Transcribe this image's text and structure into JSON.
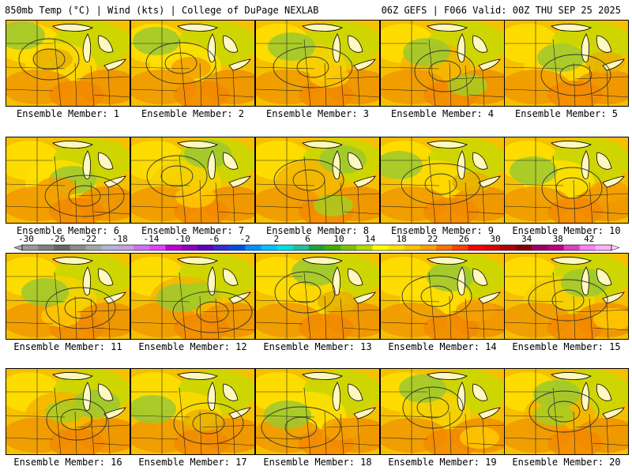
{
  "header": {
    "left": "850mb Temp (°C) | Wind (kts) | College of DuPage NEXLAB",
    "right": "06Z GEFS | F066 Valid: 00Z THU SEP 25 2025"
  },
  "members": [
    {
      "label": "Ensemble Member: 1"
    },
    {
      "label": "Ensemble Member: 2"
    },
    {
      "label": "Ensemble Member: 3"
    },
    {
      "label": "Ensemble Member: 4"
    },
    {
      "label": "Ensemble Member: 5"
    },
    {
      "label": "Ensemble Member: 6"
    },
    {
      "label": "Ensemble Member: 7"
    },
    {
      "label": "Ensemble Member: 8"
    },
    {
      "label": "Ensemble Member: 9"
    },
    {
      "label": "Ensemble Member: 10"
    },
    {
      "label": "Ensemble Member: 11"
    },
    {
      "label": "Ensemble Member: 12"
    },
    {
      "label": "Ensemble Member: 13"
    },
    {
      "label": "Ensemble Member: 14"
    },
    {
      "label": "Ensemble Member: 15"
    },
    {
      "label": "Ensemble Member: 16"
    },
    {
      "label": "Ensemble Member: 17"
    },
    {
      "label": "Ensemble Member: 18"
    },
    {
      "label": "Ensemble Member: 19"
    },
    {
      "label": "Ensemble Member: 20"
    }
  ],
  "colorbar": {
    "ticks": [
      "-30",
      "-26",
      "-22",
      "-18",
      "-14",
      "-10",
      "-6",
      "-2",
      "2",
      "6",
      "10",
      "14",
      "18",
      "22",
      "26",
      "30",
      "34",
      "38",
      "42"
    ],
    "colors": [
      "#999999",
      "#7f7f7f",
      "#666666",
      "#8c8c8c",
      "#a6a6a6",
      "#b3b3d9",
      "#c8a0e0",
      "#d070f0",
      "#e040ff",
      "#c000d0",
      "#9000c0",
      "#6000c0",
      "#3030d0",
      "#0050e0",
      "#0090ff",
      "#00c0ff",
      "#00e0e0",
      "#20c0a0",
      "#20a040",
      "#40b000",
      "#80c000",
      "#b8d800",
      "#ffff00",
      "#ffe000",
      "#ffc000",
      "#ffa000",
      "#ff7000",
      "#ff4000",
      "#ff0000",
      "#e00000",
      "#b00000",
      "#800000",
      "#a00060",
      "#c00080",
      "#e040c0",
      "#ff80ff",
      "#ffb0ff"
    ]
  }
}
